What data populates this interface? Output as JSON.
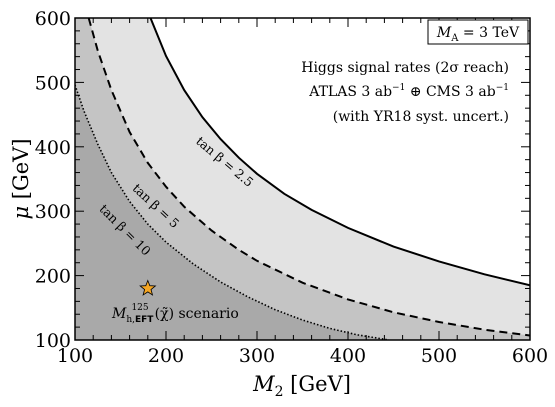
{
  "chart_data": {
    "type": "area",
    "title": "",
    "xlabel": "M₂ [GeV]",
    "ylabel": "μ [GeV]",
    "xlim": [
      100,
      600
    ],
    "ylim": [
      100,
      600
    ],
    "x_ticks": [
      100,
      200,
      300,
      400,
      500,
      600
    ],
    "y_ticks": [
      100,
      200,
      300,
      400,
      500,
      600
    ],
    "x_tick_labels": [
      "100",
      "200",
      "300",
      "400",
      "500",
      "600"
    ],
    "y_tick_labels": [
      "100",
      "200",
      "300",
      "400",
      "500",
      "600"
    ],
    "grid": false,
    "legend_box": "M_A = 3 TeV",
    "annotation_lines": [
      "Higgs signal rates (2σ reach)",
      "ATLAS 3 ab⁻¹ ⊕ CMS 3 ab⁻¹",
      "(with YR18 syst. uncert.)"
    ],
    "region_colors": {
      "outer": "#e3e3e3",
      "middle": "#c4c4c4",
      "inner": "#a9a9a9",
      "allowed": "#ffffff"
    },
    "series": [
      {
        "name": "tan β = 2.5",
        "style": "solid",
        "x": [
          183,
          200,
          220,
          240,
          260,
          280,
          300,
          330,
          360,
          400,
          450,
          500,
          550,
          600
        ],
        "y": [
          600,
          541,
          488,
          446,
          412,
          383,
          358,
          327,
          302,
          274,
          245,
          222,
          202,
          185
        ]
      },
      {
        "name": "tan β = 5",
        "style": "dashed",
        "x": [
          115,
          125,
          140,
          160,
          180,
          200,
          220,
          250,
          280,
          300,
          350,
          400,
          450,
          500,
          550,
          600
        ],
        "y": [
          600,
          549,
          488,
          423,
          375,
          338,
          307,
          270,
          240,
          223,
          189,
          163,
          143,
          128,
          116,
          107
        ]
      },
      {
        "name": "tan β = 10",
        "style": "dotted",
        "x": [
          100,
          110,
          125,
          140,
          160,
          180,
          200,
          230,
          260,
          290,
          320,
          350,
          380,
          410,
          445
        ],
        "y": [
          496,
          455,
          404,
          360,
          315,
          280,
          252,
          218,
          190,
          167,
          147,
          131,
          118,
          108,
          100
        ]
      }
    ],
    "marker": {
      "label": "M_h,EFT^125(χ̃) scenario",
      "x": 180,
      "y": 180,
      "color": "#f5a623"
    },
    "curve_label_text": {
      "t25": "tan β = 2.5",
      "t5": "tan β = 5",
      "t10": "tan β = 10"
    }
  }
}
